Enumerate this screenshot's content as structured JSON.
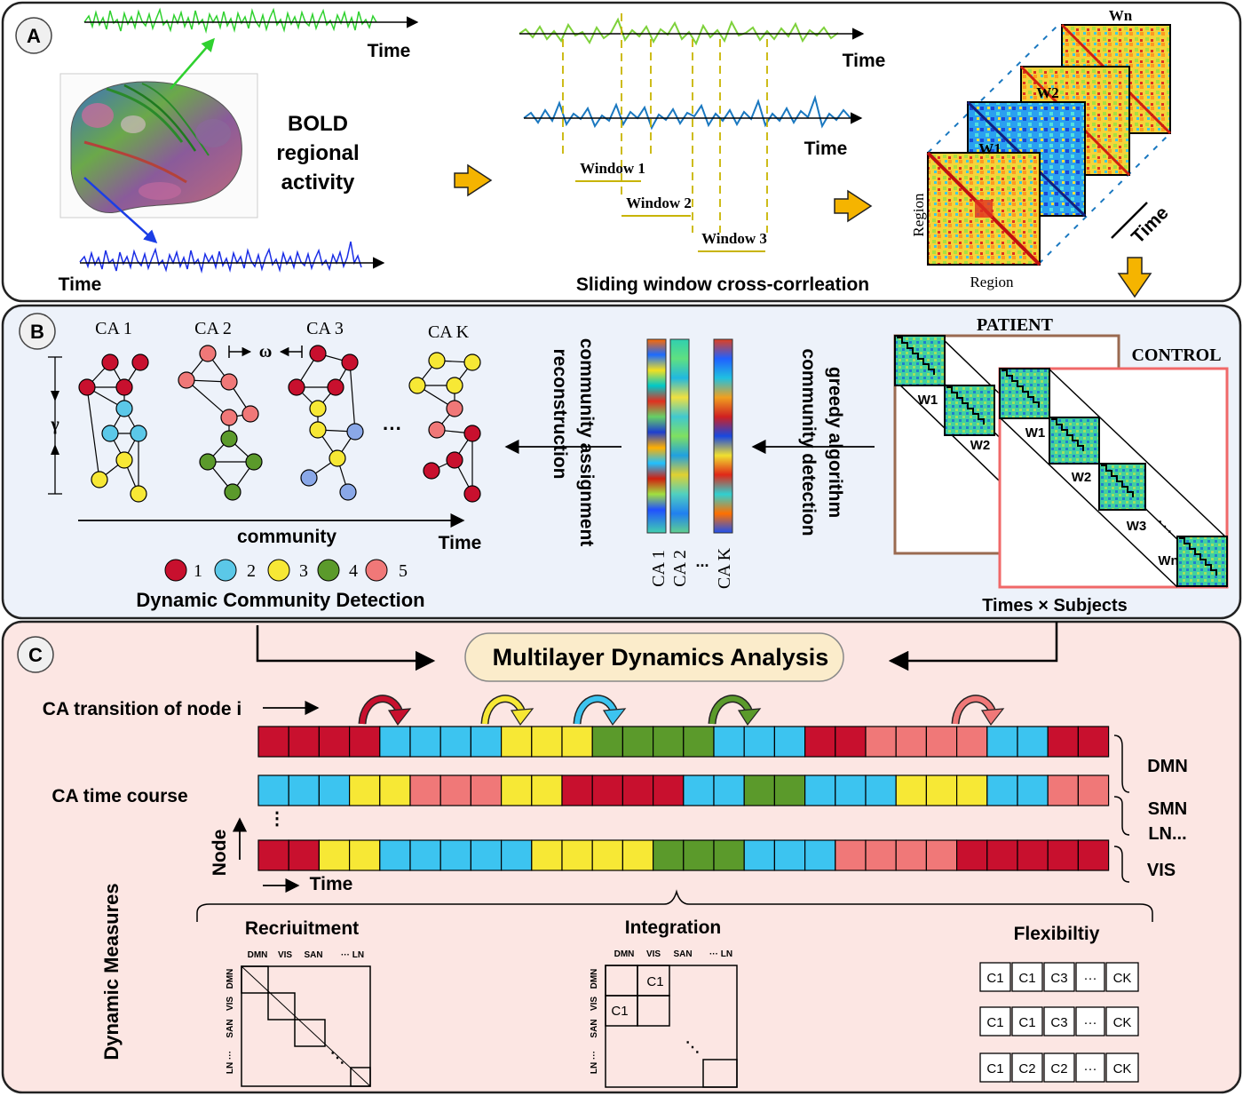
{
  "panels": {
    "a": "A",
    "b": "B",
    "c": "C"
  },
  "panel_a": {
    "time_labels": [
      "Time",
      "Time",
      "Time",
      "Time"
    ],
    "bold_lines": [
      "BOLD",
      "regional",
      "activity"
    ],
    "windows": [
      "Window 1",
      "Window 2",
      "Window 3"
    ],
    "matrix_labels": [
      "W1",
      "W2",
      "Wn"
    ],
    "region_x": "Region",
    "region_y": "Region",
    "time_axis": "Time",
    "sliding_caption": "Sliding window cross-corrleation"
  },
  "panel_b": {
    "ca_labels": [
      "CA 1",
      "CA 2",
      "CA 3",
      "CA K"
    ],
    "omega": "ω",
    "gamma": "γ",
    "ellipsis": "···",
    "community_axis": "community",
    "time_axis": "Time",
    "legend_numbers": [
      "1",
      "2",
      "3",
      "4",
      "5"
    ],
    "legend_colors": [
      "#c8102e",
      "#5bc8e8",
      "#f7e835",
      "#5b9a2b",
      "#f07878"
    ],
    "dcd_caption": "Dynamic Community Detection",
    "car_line1": "community assignment",
    "car_line2": "reconstruction",
    "greedy_line1": "greedy algorithm",
    "greedy_line2": "community detection",
    "stripe_labels": [
      "CA 1",
      "CA 2",
      "CA K"
    ],
    "stripe_dots": "...",
    "patient": "PATIENT",
    "control": "CONTROL",
    "patient_windows": [
      "W1",
      "W2"
    ],
    "control_windows": [
      "W1",
      "W2",
      "W3",
      "Wn"
    ],
    "times_subjects": "Times × Subjects"
  },
  "panel_c": {
    "mda_title": "Multilayer Dynamics Analysis",
    "ca_transition": "CA transition of node i",
    "ca_time_course": "CA time course",
    "node_axis": "Node",
    "time_axis": "Time",
    "network_labels": [
      "DMN",
      "SMN",
      "LN...",
      "VIS"
    ],
    "dynamic_measures": "Dynamic Measures",
    "recruitment": "Recriuitment",
    "integration": "Integration",
    "flexibility": "Flexibiltiy",
    "matrix_top_labels": [
      "DMN",
      "VIS",
      "SAN",
      "··· LN"
    ],
    "matrix_side_labels": [
      "DMN",
      "VIS",
      "SAN",
      "LN ···"
    ],
    "c1_label": "C1",
    "flex_rows": [
      [
        "C1",
        "C1",
        "C3",
        "···",
        "CK"
      ],
      [
        "C1",
        "C1",
        "C3",
        "···",
        "CK"
      ],
      [
        "C1",
        "C2",
        "C2",
        "···",
        "CK"
      ]
    ],
    "row_colors": [
      "#c8102e",
      "#f7e835",
      "#3cc4f0",
      "#5b9a2b",
      "#f07878"
    ],
    "row1": [
      1,
      1,
      1,
      1,
      3,
      3,
      3,
      3,
      2,
      2,
      2,
      4,
      4,
      4,
      4,
      3,
      3,
      3,
      1,
      1,
      5,
      5,
      5,
      5,
      3,
      3,
      1,
      1
    ],
    "row2": [
      3,
      3,
      3,
      2,
      2,
      5,
      5,
      5,
      2,
      2,
      1,
      1,
      1,
      1,
      3,
      3,
      4,
      4,
      3,
      3,
      3,
      2,
      2,
      2,
      3,
      3,
      5,
      5
    ],
    "row3": [
      1,
      1,
      2,
      2,
      3,
      3,
      3,
      3,
      3,
      2,
      2,
      2,
      2,
      4,
      4,
      4,
      3,
      3,
      3,
      5,
      5,
      5,
      5,
      1,
      1,
      1,
      1,
      1
    ],
    "transition_colors": [
      "#c8102e",
      "#f7e835",
      "#3cc4f0",
      "#5b9a2b",
      "#f07878"
    ]
  }
}
